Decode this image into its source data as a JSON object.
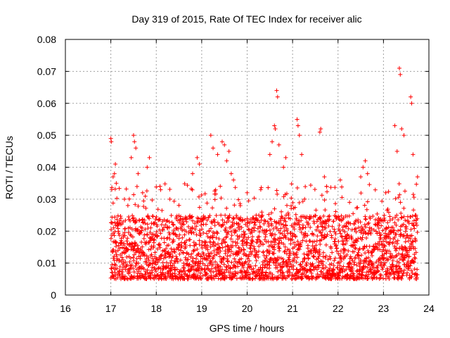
{
  "chart_data": {
    "type": "scatter",
    "title": "Day 319 of 2015, Rate Of TEC Index for receiver alic",
    "xlabel": "GPS time / hours",
    "ylabel": "ROTI / TECUs",
    "xlim": [
      16,
      24
    ],
    "ylim": [
      0,
      0.08
    ],
    "x_ticks": [
      16,
      17,
      18,
      19,
      20,
      21,
      22,
      23,
      24
    ],
    "x_tick_labels": [
      "16",
      "17",
      "18",
      "19",
      "20",
      "21",
      "22",
      "23",
      "24"
    ],
    "y_ticks": [
      0,
      0.01,
      0.02,
      0.03,
      0.04,
      0.05,
      0.06,
      0.07,
      0.08
    ],
    "y_tick_labels": [
      "0",
      "0.01",
      "0.02",
      "0.03",
      "0.04",
      "0.05",
      "0.06",
      "0.07",
      "0.08"
    ],
    "grid": true,
    "marker": "+",
    "color": "#ff0000",
    "series": [
      {
        "name": "ROTI",
        "data_range_x": [
          17.0,
          23.75
        ],
        "typical_range_y": [
          0.005,
          0.025
        ],
        "points": [
          [
            17.0,
            0.049
          ],
          [
            17.01,
            0.048
          ],
          [
            17.02,
            0.033
          ],
          [
            17.05,
            0.037
          ],
          [
            17.08,
            0.038
          ],
          [
            17.1,
            0.041
          ],
          [
            17.12,
            0.035
          ],
          [
            17.3,
            0.03
          ],
          [
            17.45,
            0.043
          ],
          [
            17.5,
            0.05
          ],
          [
            17.52,
            0.048
          ],
          [
            17.55,
            0.046
          ],
          [
            17.6,
            0.038
          ],
          [
            17.7,
            0.032
          ],
          [
            17.8,
            0.04
          ],
          [
            17.85,
            0.043
          ],
          [
            18.3,
            0.03
          ],
          [
            18.8,
            0.038
          ],
          [
            18.9,
            0.043
          ],
          [
            18.95,
            0.041
          ],
          [
            19.2,
            0.05
          ],
          [
            19.25,
            0.046
          ],
          [
            19.35,
            0.044
          ],
          [
            19.45,
            0.048
          ],
          [
            19.5,
            0.047
          ],
          [
            19.55,
            0.042
          ],
          [
            19.6,
            0.045
          ],
          [
            19.65,
            0.038
          ],
          [
            19.7,
            0.036
          ],
          [
            20.0,
            0.032
          ],
          [
            20.3,
            0.033
          ],
          [
            20.5,
            0.044
          ],
          [
            20.55,
            0.048
          ],
          [
            20.6,
            0.053
          ],
          [
            20.62,
            0.052
          ],
          [
            20.65,
            0.064
          ],
          [
            20.67,
            0.062
          ],
          [
            20.7,
            0.047
          ],
          [
            20.8,
            0.04
          ],
          [
            20.85,
            0.043
          ],
          [
            21.1,
            0.055
          ],
          [
            21.12,
            0.053
          ],
          [
            21.15,
            0.05
          ],
          [
            21.2,
            0.044
          ],
          [
            21.6,
            0.051
          ],
          [
            21.62,
            0.052
          ],
          [
            21.7,
            0.037
          ],
          [
            21.75,
            0.034
          ],
          [
            22.05,
            0.036
          ],
          [
            22.5,
            0.037
          ],
          [
            22.55,
            0.04
          ],
          [
            22.6,
            0.042
          ],
          [
            22.65,
            0.038
          ],
          [
            23.05,
            0.032
          ],
          [
            23.25,
            0.053
          ],
          [
            23.3,
            0.045
          ],
          [
            23.35,
            0.071
          ],
          [
            23.37,
            0.069
          ],
          [
            23.4,
            0.052
          ],
          [
            23.45,
            0.05
          ],
          [
            23.6,
            0.062
          ],
          [
            23.62,
            0.06
          ],
          [
            23.65,
            0.044
          ],
          [
            23.7,
            0.025
          ],
          [
            23.75,
            0.037
          ]
        ]
      }
    ]
  }
}
